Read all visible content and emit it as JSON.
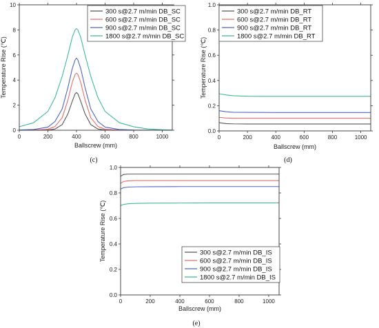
{
  "chart_data": [
    {
      "id": "c",
      "caption": "(c)",
      "type": "line",
      "xlabel": "Ballscrew (mm)",
      "ylabel": "Temperature Rise (℃)",
      "xlim": [
        0,
        1070
      ],
      "ylim": [
        0,
        10
      ],
      "xticks": [
        "0",
        "200",
        "400",
        "600",
        "800",
        "1000"
      ],
      "yticks": [
        "0",
        "2",
        "4",
        "6",
        "8",
        "10"
      ],
      "legend_position": "top-right",
      "series": [
        {
          "name": "300 s@2.7 m/min DB_SC",
          "color": "#555555",
          "x": [
            0,
            100,
            200,
            250,
            300,
            340,
            370,
            390,
            400,
            410,
            430,
            460,
            500,
            550,
            600,
            700,
            800,
            1000,
            1070
          ],
          "y": [
            0,
            0,
            0.02,
            0.1,
            0.45,
            1.3,
            2.3,
            2.9,
            3.0,
            2.9,
            2.3,
            1.3,
            0.45,
            0.1,
            0.02,
            0,
            0,
            0,
            0
          ]
        },
        {
          "name": "600 s@2.7 m/min DB_SC",
          "color": "#ee6a6a",
          "x": [
            0,
            100,
            200,
            250,
            300,
            340,
            370,
            390,
            400,
            410,
            430,
            460,
            500,
            550,
            600,
            700,
            800,
            1000,
            1070
          ],
          "y": [
            0,
            0.01,
            0.08,
            0.3,
            1.0,
            2.4,
            3.8,
            4.45,
            4.55,
            4.45,
            3.8,
            2.4,
            1.0,
            0.3,
            0.08,
            0.01,
            0,
            0,
            0
          ]
        },
        {
          "name": "900 s@2.7 m/min DB_SC",
          "color": "#4c66c8",
          "x": [
            0,
            100,
            200,
            250,
            300,
            340,
            370,
            390,
            400,
            410,
            430,
            460,
            500,
            550,
            600,
            700,
            800,
            1000,
            1070
          ],
          "y": [
            0.02,
            0.06,
            0.25,
            0.7,
            1.7,
            3.4,
            4.9,
            5.6,
            5.75,
            5.6,
            4.9,
            3.4,
            1.7,
            0.7,
            0.25,
            0.06,
            0.02,
            0,
            0
          ]
        },
        {
          "name": "1800 s@2.7 m/min DB_SC",
          "color": "#3dba9a",
          "x": [
            0,
            100,
            200,
            250,
            300,
            340,
            370,
            390,
            400,
            410,
            430,
            460,
            500,
            550,
            600,
            700,
            800,
            900,
            1000,
            1070
          ],
          "y": [
            0.28,
            0.6,
            1.5,
            2.6,
            4.3,
            6.0,
            7.4,
            8.0,
            8.1,
            8.0,
            7.4,
            6.0,
            4.3,
            2.6,
            1.5,
            0.6,
            0.28,
            0.1,
            0.04,
            0.02
          ]
        }
      ]
    },
    {
      "id": "d",
      "caption": "(d)",
      "type": "line",
      "xlabel": "Ballscrew (mm)",
      "ylabel": "Temperature Rise (℃)",
      "xlim": [
        0,
        1070
      ],
      "ylim": [
        0,
        1.0
      ],
      "xticks": [
        "0",
        "200",
        "400",
        "600",
        "800",
        "1000"
      ],
      "yticks": [
        "0.0",
        "0.2",
        "0.4",
        "0.6",
        "0.8",
        "1.0"
      ],
      "legend_position": "top-left",
      "series": [
        {
          "name": "300 s@2.7 m/min DB_RT",
          "color": "#555555",
          "x": [
            0,
            50,
            100,
            200,
            400,
            600,
            800,
            1000,
            1070
          ],
          "y": [
            0.065,
            0.058,
            0.056,
            0.055,
            0.055,
            0.055,
            0.055,
            0.055,
            0.055
          ]
        },
        {
          "name": "600 s@2.7 m/min DB_RT",
          "color": "#ee6a6a",
          "x": [
            0,
            50,
            100,
            200,
            400,
            600,
            800,
            1000,
            1070
          ],
          "y": [
            0.108,
            0.102,
            0.1,
            0.1,
            0.1,
            0.1,
            0.1,
            0.1,
            0.1
          ]
        },
        {
          "name": "900 s@2.7 m/min DB_RT",
          "color": "#4c66c8",
          "x": [
            0,
            50,
            100,
            200,
            400,
            600,
            800,
            1000,
            1070
          ],
          "y": [
            0.16,
            0.152,
            0.148,
            0.147,
            0.146,
            0.146,
            0.146,
            0.146,
            0.146
          ]
        },
        {
          "name": "1800 s@2.7 m/min DB_RT",
          "color": "#3dba9a",
          "x": [
            0,
            50,
            100,
            200,
            400,
            600,
            800,
            1000,
            1070
          ],
          "y": [
            0.295,
            0.285,
            0.279,
            0.275,
            0.274,
            0.274,
            0.274,
            0.274,
            0.275
          ]
        }
      ]
    },
    {
      "id": "e",
      "caption": "(e)",
      "type": "line",
      "xlabel": "Ballscrew (mm)",
      "ylabel": "Temperature Rise (℃)",
      "xlim": [
        0,
        1070
      ],
      "ylim": [
        0,
        1.0
      ],
      "xticks": [
        "0",
        "200",
        "400",
        "600",
        "800",
        "1000"
      ],
      "yticks": [
        "0.0",
        "0.2",
        "0.4",
        "0.6",
        "0.8",
        "1.0"
      ],
      "legend_position": "bottom-right",
      "series": [
        {
          "name": "300 s@2.7 m/min DB_IS",
          "color": "#555555",
          "x": [
            0,
            20,
            50,
            100,
            200,
            400,
            600,
            800,
            1000,
            1070
          ],
          "y": [
            0.93,
            0.945,
            0.948,
            0.948,
            0.948,
            0.948,
            0.948,
            0.948,
            0.948,
            0.948
          ]
        },
        {
          "name": "600 s@2.7 m/min DB_IS",
          "color": "#ee6a6a",
          "x": [
            0,
            20,
            50,
            100,
            200,
            400,
            600,
            800,
            1000,
            1070
          ],
          "y": [
            0.875,
            0.89,
            0.895,
            0.897,
            0.897,
            0.897,
            0.897,
            0.897,
            0.897,
            0.897
          ]
        },
        {
          "name": "900 s@2.7 m/min DB_IS",
          "color": "#4c66c8",
          "x": [
            0,
            20,
            50,
            100,
            200,
            400,
            600,
            800,
            1000,
            1070
          ],
          "y": [
            0.83,
            0.842,
            0.846,
            0.848,
            0.849,
            0.85,
            0.85,
            0.85,
            0.85,
            0.85
          ]
        },
        {
          "name": "1800 s@2.7 m/min DB_IS",
          "color": "#3dba9a",
          "x": [
            0,
            20,
            50,
            100,
            200,
            400,
            600,
            800,
            1000,
            1070
          ],
          "y": [
            0.7,
            0.71,
            0.715,
            0.718,
            0.72,
            0.721,
            0.722,
            0.722,
            0.722,
            0.722
          ]
        }
      ]
    }
  ]
}
